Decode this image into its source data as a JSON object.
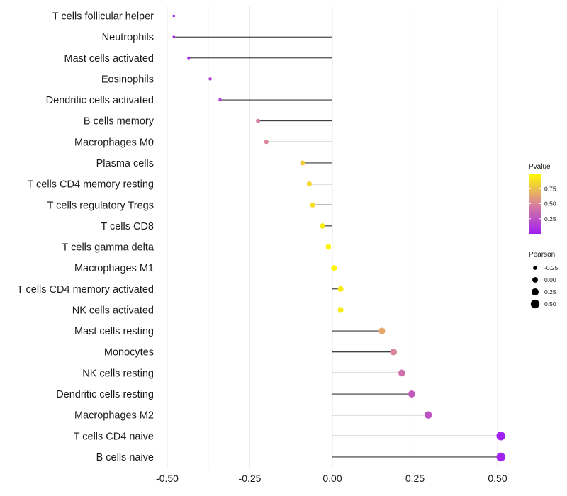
{
  "chart_data": {
    "type": "lollipop",
    "title": "",
    "xlabel": "",
    "ylabel": "",
    "xlim": [
      -0.5,
      0.5
    ],
    "x_ticks": [
      -0.5,
      -0.25,
      0.0,
      0.25,
      0.5
    ],
    "x_tick_labels": [
      "-0.50",
      "-0.25",
      "0.00",
      "0.25",
      "0.50"
    ],
    "categories": [
      "T cells follicular helper",
      "Neutrophils",
      "Mast cells activated",
      "Eosinophils",
      "Dendritic cells activated",
      "B cells memory",
      "Macrophages M0",
      "Plasma cells",
      "T cells CD4 memory resting",
      "T cells regulatory  Tregs ",
      "T cells CD8",
      "T cells gamma delta",
      "Macrophages M1",
      "T cells CD4 memory activated",
      "NK cells activated",
      "Mast cells resting",
      "Monocytes",
      "NK cells resting",
      "Dendritic cells resting",
      "Macrophages M2",
      "T cells CD4 naive",
      "B cells naive"
    ],
    "pearson": [
      -0.48,
      -0.48,
      -0.435,
      -0.37,
      -0.34,
      -0.225,
      -0.2,
      -0.09,
      -0.07,
      -0.06,
      -0.03,
      -0.012,
      0.005,
      0.025,
      0.025,
      0.15,
      0.185,
      0.21,
      0.24,
      0.29,
      0.51,
      0.51
    ],
    "pvalue": [
      0.02,
      0.02,
      0.05,
      0.15,
      0.2,
      0.45,
      0.5,
      0.8,
      0.85,
      0.88,
      0.93,
      0.97,
      0.98,
      0.93,
      0.93,
      0.65,
      0.5,
      0.4,
      0.3,
      0.25,
      0.01,
      0.01
    ],
    "grid": true,
    "legend": {
      "color": {
        "title": "Pvalue",
        "labels": [
          "0.75",
          "0.50",
          "0.25"
        ],
        "values": [
          0.75,
          0.5,
          0.25
        ],
        "low_color": "#a01ff0",
        "mid_color": "#d98499",
        "high_color": "#fffc00"
      },
      "size": {
        "title": "Pearson",
        "labels": [
          "-0.25",
          "0.00",
          "0.25",
          "0.50"
        ],
        "values": [
          -0.25,
          0.0,
          0.25,
          0.5
        ]
      },
      "position": "right"
    }
  }
}
